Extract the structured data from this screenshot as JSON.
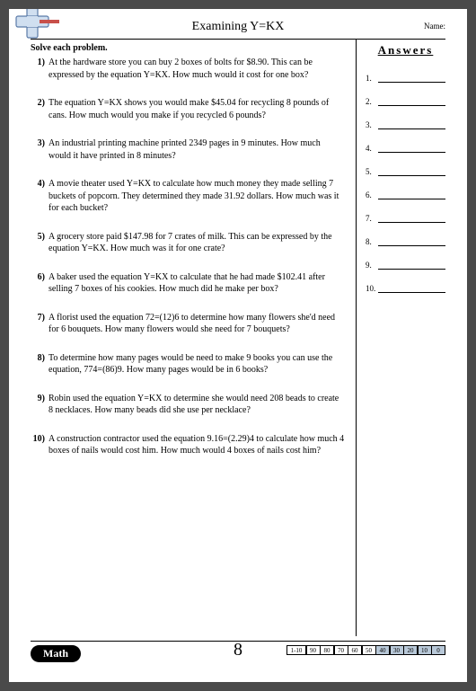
{
  "header": {
    "title": "Examining Y=KX",
    "name_label": "Name:"
  },
  "instruction": "Solve each problem.",
  "problems": [
    {
      "n": "1)",
      "t": "At the hardware store you can buy 2 boxes of bolts for $8.90. This can be expressed by the equation Y=KX. How much would it cost for one box?"
    },
    {
      "n": "2)",
      "t": "The equation Y=KX shows you would make $45.04 for recycling 8 pounds of cans. How much would you make if you recycled 6 pounds?"
    },
    {
      "n": "3)",
      "t": "An industrial printing machine printed 2349 pages in 9 minutes. How much would it have printed in 8 minutes?"
    },
    {
      "n": "4)",
      "t": "A movie theater used Y=KX to calculate how much money they made selling 7 buckets of popcorn. They determined they made 31.92 dollars. How much was it for each bucket?"
    },
    {
      "n": "5)",
      "t": "A grocery store paid $147.98 for 7 crates of milk. This can be expressed by the equation Y=KX. How much was it for one crate?"
    },
    {
      "n": "6)",
      "t": "A baker used the equation Y=KX to calculate that he had made $102.41 after selling 7 boxes of his cookies. How much did he make per box?"
    },
    {
      "n": "7)",
      "t": "A florist used the equation 72=(12)6 to determine how many flowers she'd need for 6 bouquets. How many flowers would she need for 7 bouquets?"
    },
    {
      "n": "8)",
      "t": "To determine how many pages would be need to make 9 books you can use the equation, 774=(86)9. How many pages would be in 6 books?"
    },
    {
      "n": "9)",
      "t": "Robin used the equation Y=KX to determine she would need 208 beads to create 8 necklaces. How many beads did she use per necklace?"
    },
    {
      "n": "10)",
      "t": "A construction contractor used the equation 9.16=(2.29)4 to calculate how much 4 boxes of nails would cost him. How much would 4 boxes of nails cost him?"
    }
  ],
  "answers": {
    "title": "Answers",
    "count": 10
  },
  "footer": {
    "badge": "Math",
    "page_number": "8",
    "score_label": "1-10",
    "scores": [
      "90",
      "80",
      "70",
      "60",
      "50",
      "40",
      "30",
      "20",
      "10",
      "0"
    ],
    "shaded_from_index": 5
  },
  "colors": {
    "page_bg": "#ffffff",
    "body_bg": "#4a4a4a",
    "shaded_cell": "#b8c8d8",
    "plus_fill": "#d0dff0",
    "plus_stroke": "#5a7aa8",
    "plus_accent": "#c8504a"
  }
}
